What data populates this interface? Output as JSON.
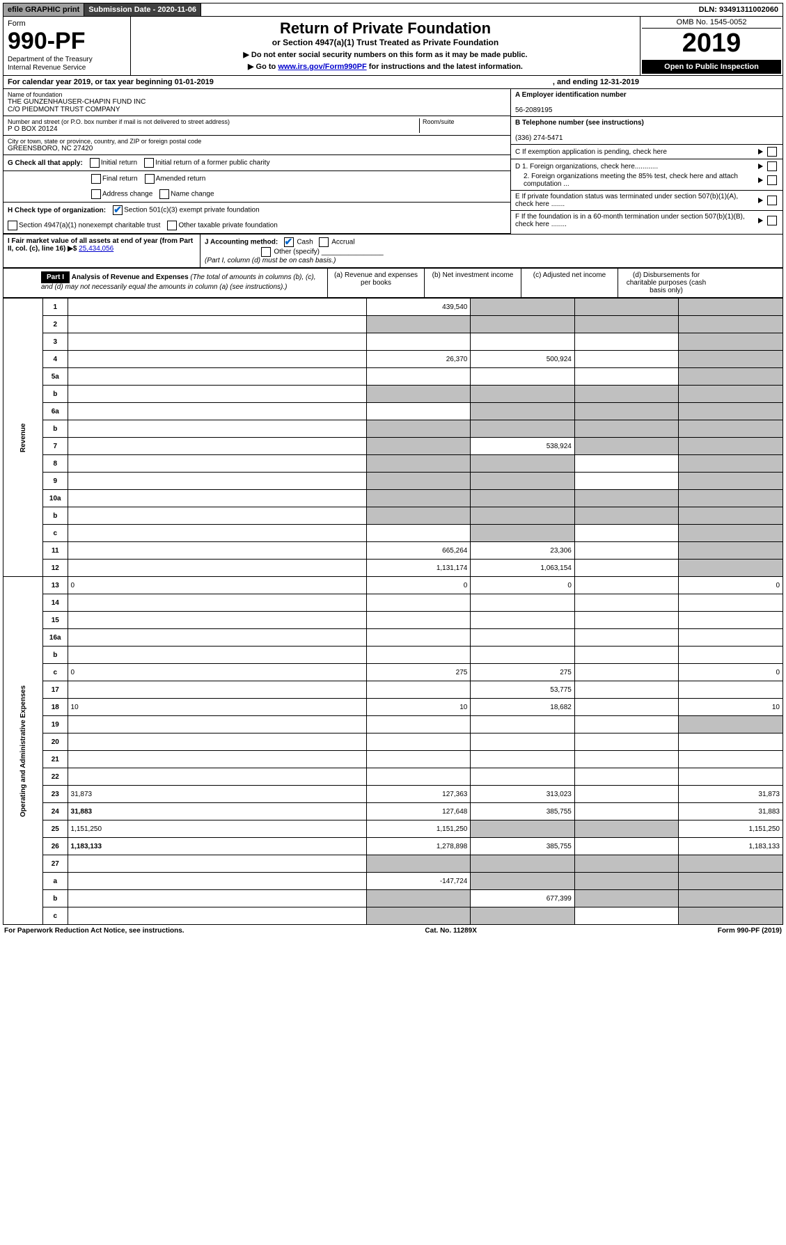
{
  "top": {
    "efile": "efile GRAPHIC print",
    "subdate_label": "Submission Date - 2020-11-06",
    "dln": "DLN: 93491311002060"
  },
  "header": {
    "form_word": "Form",
    "form_no": "990-PF",
    "dept": "Department of the Treasury",
    "irs": "Internal Revenue Service",
    "title": "Return of Private Foundation",
    "subtitle": "or Section 4947(a)(1) Trust Treated as Private Foundation",
    "instr1": "▶ Do not enter social security numbers on this form as it may be made public.",
    "instr2_pre": "▶ Go to ",
    "instr2_link": "www.irs.gov/Form990PF",
    "instr2_post": " for instructions and the latest information.",
    "omb": "OMB No. 1545-0052",
    "year": "2019",
    "open": "Open to Public Inspection"
  },
  "cal": {
    "label": "For calendar year 2019, or tax year beginning 01-01-2019",
    "ending": ", and ending 12-31-2019"
  },
  "info": {
    "name_label": "Name of foundation",
    "name1": "THE GUNZENHAUSER-CHAPIN FUND INC",
    "name2": "C/O PIEDMONT TRUST COMPANY",
    "addr_label": "Number and street (or P.O. box number if mail is not delivered to street address)",
    "room_label": "Room/suite",
    "addr": "P O BOX 20124",
    "city_label": "City or town, state or province, country, and ZIP or foreign postal code",
    "city": "GREENSBORO, NC  27420",
    "a_label": "A Employer identification number",
    "a_val": "56-2089195",
    "b_label": "B Telephone number (see instructions)",
    "b_val": "(336) 274-5471",
    "c_label": "C If exemption application is pending, check here",
    "d1_label": "D 1. Foreign organizations, check here............",
    "d2_label": "2. Foreign organizations meeting the 85% test, check here and attach computation ...",
    "e_label": "E  If private foundation status was terminated under section 507(b)(1)(A), check here .......",
    "f_label": "F  If the foundation is in a 60-month termination under section 507(b)(1)(B), check here ........"
  },
  "checks": {
    "g_label": "G Check all that apply:",
    "g_opts": [
      "Initial return",
      "Initial return of a former public charity",
      "Final return",
      "Amended return",
      "Address change",
      "Name change"
    ],
    "h_label": "H Check type of organization:",
    "h_opt1": "Section 501(c)(3) exempt private foundation",
    "h_opt2": "Section 4947(a)(1) nonexempt charitable trust",
    "h_opt3": "Other taxable private foundation",
    "i_label": "I Fair market value of all assets at end of year (from Part II, col. (c), line 16) ▶$ ",
    "i_val": "25,434,056",
    "j_label": "J Accounting method:",
    "j_cash": "Cash",
    "j_accrual": "Accrual",
    "j_other": "Other (specify)",
    "j_note": "(Part I, column (d) must be on cash basis.)"
  },
  "part1": {
    "label": "Part I",
    "title": "Analysis of Revenue and Expenses",
    "note": "(The total of amounts in columns (b), (c), and (d) may not necessarily equal the amounts in column (a) (see instructions).)",
    "col_a": "(a) Revenue and expenses per books",
    "col_b": "(b) Net investment income",
    "col_c": "(c) Adjusted net income",
    "col_d": "(d) Disbursements for charitable purposes (cash basis only)"
  },
  "vert": {
    "revenue": "Revenue",
    "expenses": "Operating and Administrative Expenses"
  },
  "rows": [
    {
      "n": "1",
      "d": "",
      "a": "439,540",
      "b": "",
      "c": "",
      "shade_b": true,
      "shade_c": true,
      "shade_d": true
    },
    {
      "n": "2",
      "d": "",
      "a": "",
      "b": "",
      "c": "",
      "shade_a": true,
      "shade_b": true,
      "shade_c": true,
      "shade_d": true
    },
    {
      "n": "3",
      "d": "",
      "a": "",
      "b": "",
      "c": "",
      "shade_d": true
    },
    {
      "n": "4",
      "d": "",
      "a": "26,370",
      "b": "500,924",
      "c": "",
      "shade_d": true
    },
    {
      "n": "5a",
      "d": "",
      "a": "",
      "b": "",
      "c": "",
      "shade_d": true
    },
    {
      "n": "b",
      "d": "",
      "a": "",
      "b": "",
      "c": "",
      "shade_a": true,
      "shade_b": true,
      "shade_c": true,
      "shade_d": true
    },
    {
      "n": "6a",
      "d": "",
      "a": "",
      "b": "",
      "c": "",
      "shade_b": true,
      "shade_c": true,
      "shade_d": true
    },
    {
      "n": "b",
      "d": "",
      "a": "",
      "b": "",
      "c": "",
      "shade_a": true,
      "shade_b": true,
      "shade_c": true,
      "shade_d": true
    },
    {
      "n": "7",
      "d": "",
      "a": "",
      "b": "538,924",
      "c": "",
      "shade_a": true,
      "shade_c": true,
      "shade_d": true
    },
    {
      "n": "8",
      "d": "",
      "a": "",
      "b": "",
      "c": "",
      "shade_a": true,
      "shade_b": true,
      "shade_d": true
    },
    {
      "n": "9",
      "d": "",
      "a": "",
      "b": "",
      "c": "",
      "shade_a": true,
      "shade_b": true,
      "shade_d": true
    },
    {
      "n": "10a",
      "d": "",
      "a": "",
      "b": "",
      "c": "",
      "shade_a": true,
      "shade_b": true,
      "shade_c": true,
      "shade_d": true
    },
    {
      "n": "b",
      "d": "",
      "a": "",
      "b": "",
      "c": "",
      "shade_a": true,
      "shade_b": true,
      "shade_c": true,
      "shade_d": true
    },
    {
      "n": "c",
      "d": "",
      "a": "",
      "b": "",
      "c": "",
      "shade_b": true,
      "shade_d": true
    },
    {
      "n": "11",
      "d": "",
      "a": "665,264",
      "b": "23,306",
      "c": "",
      "shade_d": true
    },
    {
      "n": "12",
      "d": "",
      "a": "1,131,174",
      "b": "1,063,154",
      "c": "",
      "bold": true,
      "shade_d": true
    },
    {
      "n": "13",
      "d": "0",
      "a": "0",
      "b": "0",
      "c": ""
    },
    {
      "n": "14",
      "d": "",
      "a": "",
      "b": "",
      "c": ""
    },
    {
      "n": "15",
      "d": "",
      "a": "",
      "b": "",
      "c": ""
    },
    {
      "n": "16a",
      "d": "",
      "a": "",
      "b": "",
      "c": ""
    },
    {
      "n": "b",
      "d": "",
      "a": "",
      "b": "",
      "c": ""
    },
    {
      "n": "c",
      "d": "0",
      "a": "275",
      "b": "275",
      "c": ""
    },
    {
      "n": "17",
      "d": "",
      "a": "",
      "b": "53,775",
      "c": ""
    },
    {
      "n": "18",
      "d": "10",
      "a": "10",
      "b": "18,682",
      "c": ""
    },
    {
      "n": "19",
      "d": "",
      "a": "",
      "b": "",
      "c": "",
      "shade_d": true
    },
    {
      "n": "20",
      "d": "",
      "a": "",
      "b": "",
      "c": ""
    },
    {
      "n": "21",
      "d": "",
      "a": "",
      "b": "",
      "c": ""
    },
    {
      "n": "22",
      "d": "",
      "a": "",
      "b": "",
      "c": ""
    },
    {
      "n": "23",
      "d": "31,873",
      "a": "127,363",
      "b": "313,023",
      "c": ""
    },
    {
      "n": "24",
      "d": "31,883",
      "a": "127,648",
      "b": "385,755",
      "c": "",
      "bold": true
    },
    {
      "n": "25",
      "d": "1,151,250",
      "a": "1,151,250",
      "b": "",
      "c": "",
      "shade_b": true,
      "shade_c": true
    },
    {
      "n": "26",
      "d": "1,183,133",
      "a": "1,278,898",
      "b": "385,755",
      "c": "",
      "bold": true
    },
    {
      "n": "27",
      "d": "",
      "a": "",
      "b": "",
      "c": "",
      "shade_a": true,
      "shade_b": true,
      "shade_c": true,
      "shade_d": true
    },
    {
      "n": "a",
      "d": "",
      "a": "-147,724",
      "b": "",
      "c": "",
      "bold": true,
      "shade_b": true,
      "shade_c": true,
      "shade_d": true
    },
    {
      "n": "b",
      "d": "",
      "a": "",
      "b": "677,399",
      "c": "",
      "bold": true,
      "shade_a": true,
      "shade_c": true,
      "shade_d": true
    },
    {
      "n": "c",
      "d": "",
      "a": "",
      "b": "",
      "c": "",
      "bold": true,
      "shade_a": true,
      "shade_b": true,
      "shade_d": true
    }
  ],
  "footer": {
    "left": "For Paperwork Reduction Act Notice, see instructions.",
    "mid": "Cat. No. 11289X",
    "right": "Form 990-PF (2019)"
  }
}
